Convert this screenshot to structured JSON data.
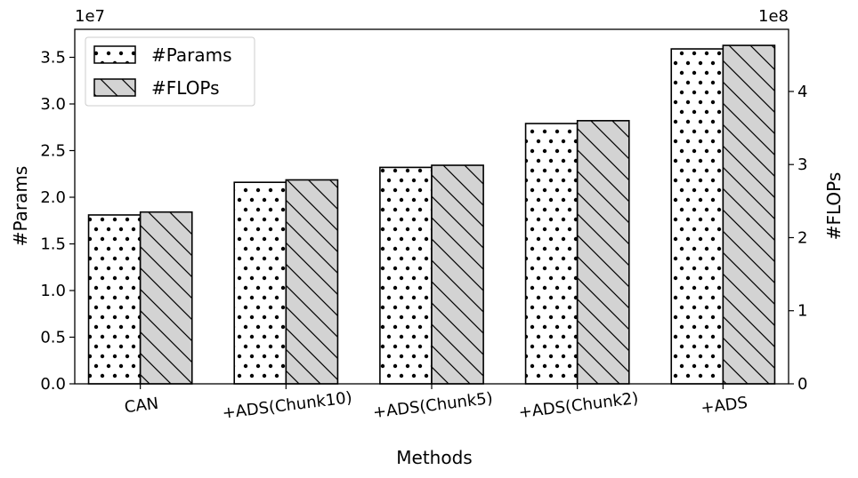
{
  "chart_data": {
    "type": "bar",
    "xlabel": "Methods",
    "categories": [
      "CAN",
      "+ADS(Chunk10)",
      "+ADS(Chunk5)",
      "+ADS(Chunk2)",
      "+ADS"
    ],
    "series": [
      {
        "name": "#Params",
        "axis": "left",
        "values": [
          18100000,
          21600000,
          23200000,
          27900000,
          35900000
        ],
        "fill": "#ffffff",
        "hatch": "dots"
      },
      {
        "name": "#FLOPs",
        "axis": "right",
        "values": [
          235000000,
          279000000,
          299000000,
          360000000,
          463000000
        ],
        "fill": "#d3d3d3",
        "hatch": "diagonal"
      }
    ],
    "left_axis": {
      "label": "#Params",
      "offset_label": "1e7",
      "scale": 10000000,
      "ylim": [
        0,
        38000000
      ],
      "ticks": [
        "0.0",
        "0.5",
        "1.0",
        "1.5",
        "2.0",
        "2.5",
        "3.0",
        "3.5"
      ]
    },
    "right_axis": {
      "label": "#FLOPs",
      "offset_label": "1e8",
      "scale": 100000000,
      "ylim": [
        0,
        485000000
      ],
      "ticks": [
        "0",
        "1",
        "2",
        "3",
        "4"
      ]
    },
    "legend_position": "top-left",
    "grid": false
  }
}
